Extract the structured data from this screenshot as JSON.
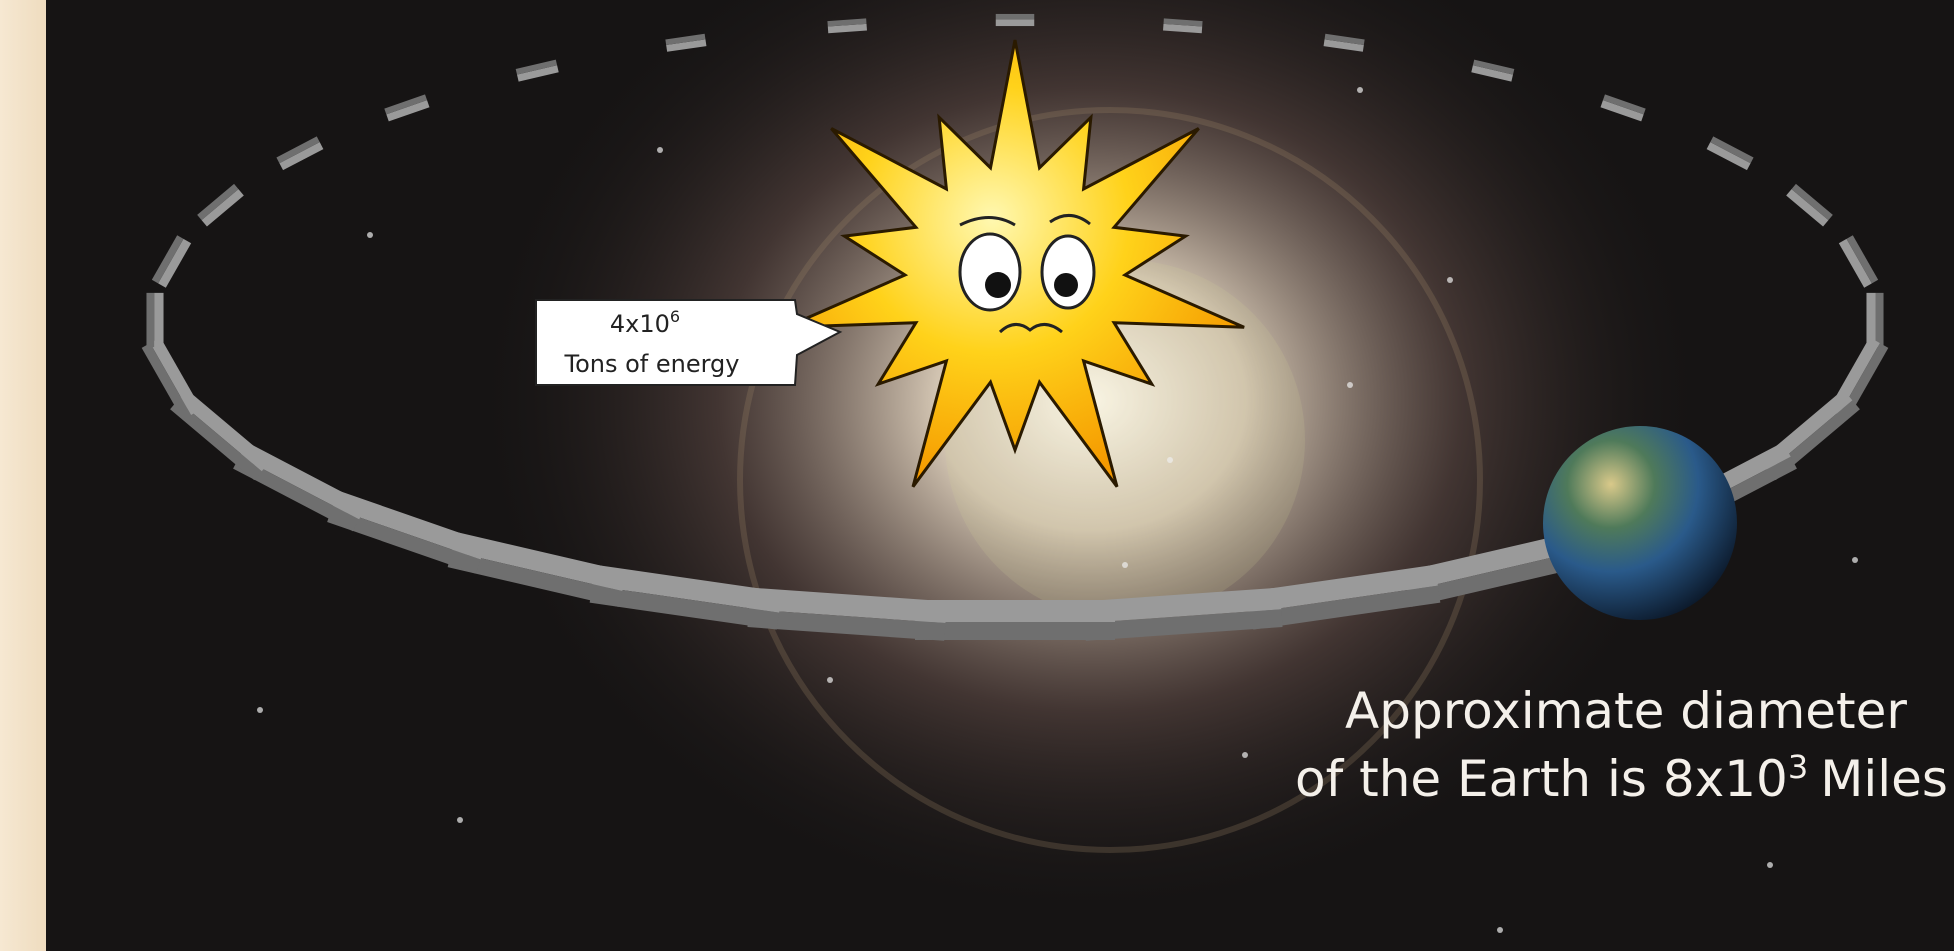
{
  "arrow_label": {
    "base": "4x10",
    "exponent": "6",
    "line2": "Tons of energy"
  },
  "caption": {
    "line1": "Approximate diameter",
    "line2_base": "of the Earth is 8x10",
    "line2_exponent": "3",
    "line2_unit": "Miles"
  }
}
